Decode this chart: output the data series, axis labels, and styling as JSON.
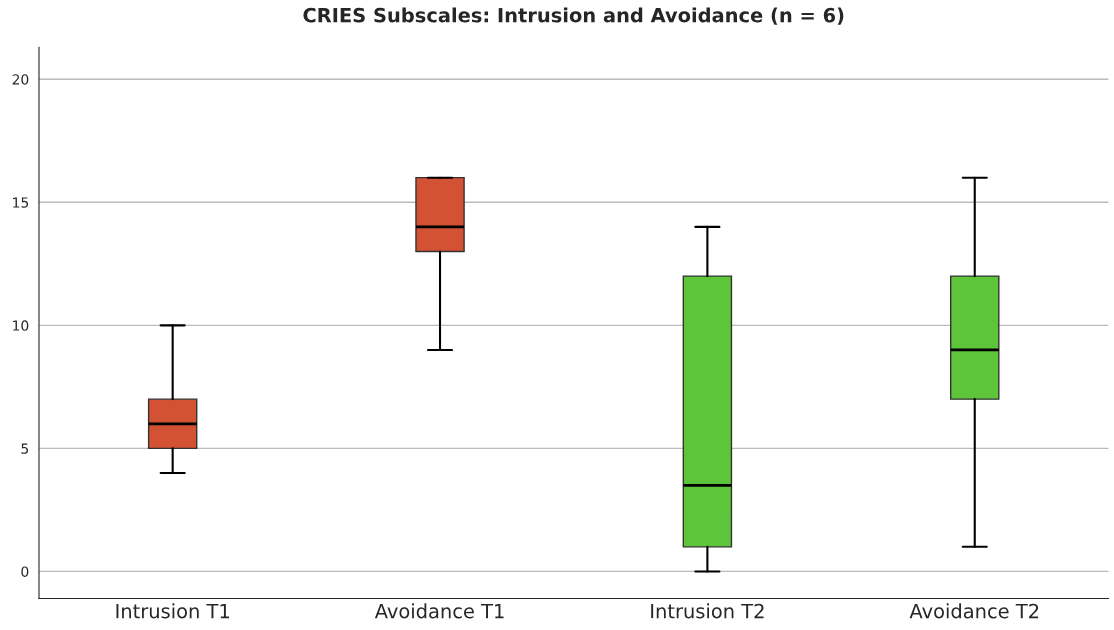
{
  "chart_data": {
    "type": "box",
    "title": "CRIES Subscales: Intrusion and Avoidance (n = 6)",
    "categories": [
      "Intrusion T1",
      "Avoidance T1",
      "Intrusion T2",
      "Avoidance T2"
    ],
    "boxes": [
      {
        "low": 4,
        "q1": 5,
        "median": 6,
        "q3": 7,
        "high": 10
      },
      {
        "low": 9,
        "q1": 13,
        "median": 14,
        "q3": 16,
        "high": 16
      },
      {
        "low": 0,
        "q1": 1,
        "median": 3.5,
        "q3": 12,
        "high": 14
      },
      {
        "low": 1,
        "q1": 7,
        "median": 9,
        "q3": 12,
        "high": 16
      }
    ],
    "colors": [
      "#d35233",
      "#d35233",
      "#5ec43a",
      "#5ec43a"
    ],
    "ylim": [
      -1.1,
      21.3
    ],
    "yticks": [
      0,
      5,
      10,
      15,
      20
    ],
    "grid": "y"
  }
}
